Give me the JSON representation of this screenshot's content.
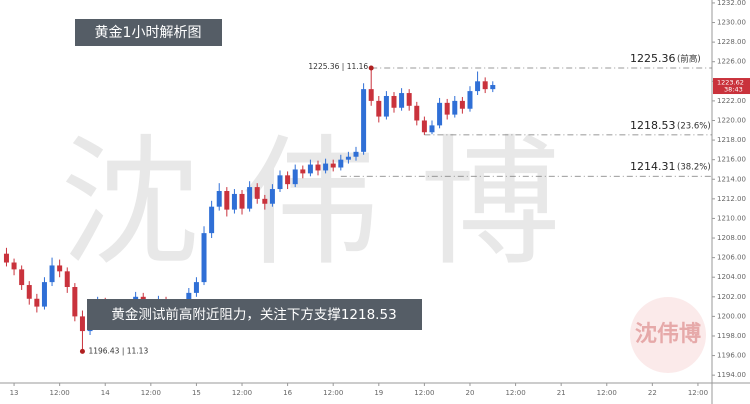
{
  "chart_data": {
    "type": "candlestick",
    "title": "黄金1小时解析图",
    "note": "黄金测试前高附近阻力，关注下方支撑1218.53",
    "watermark": "沈伟博",
    "logo": "沈伟博",
    "up_color": "#2f6fd6",
    "down_color": "#c9323c",
    "x": [
      -2,
      0,
      2,
      4,
      6,
      8,
      10,
      12,
      14,
      16,
      18,
      20,
      22,
      24,
      26,
      28,
      30,
      32,
      34,
      36,
      38,
      40,
      42,
      44,
      46,
      48,
      50,
      52,
      54,
      56,
      58,
      60,
      62,
      64,
      66,
      68,
      70,
      72,
      74,
      76,
      78,
      80,
      82,
      84,
      86,
      88,
      90,
      92,
      94,
      96,
      98,
      100,
      102,
      104,
      106,
      108,
      110,
      112,
      114,
      116,
      118,
      120,
      122,
      124,
      126
    ],
    "candles": [
      [
        1206.4,
        1207.0,
        1205.1,
        1205.5
      ],
      [
        1205.5,
        1205.9,
        1204.2,
        1204.8
      ],
      [
        1204.8,
        1205.2,
        1202.7,
        1203.2
      ],
      [
        1203.2,
        1203.6,
        1201.2,
        1201.8
      ],
      [
        1201.8,
        1202.3,
        1200.4,
        1201.0
      ],
      [
        1201.0,
        1204.0,
        1200.7,
        1203.5
      ],
      [
        1203.5,
        1206.0,
        1203.1,
        1205.2
      ],
      [
        1205.2,
        1205.8,
        1204.0,
        1204.6
      ],
      [
        1204.6,
        1205.0,
        1202.4,
        1203.0
      ],
      [
        1203.0,
        1203.4,
        1199.5,
        1200.0
      ],
      [
        1200.0,
        1200.6,
        1196.43,
        1198.5
      ],
      [
        1198.5,
        1200.8,
        1198.1,
        1200.2
      ],
      [
        1200.2,
        1202.0,
        1199.8,
        1201.5
      ],
      [
        1201.5,
        1201.9,
        1200.2,
        1200.8
      ],
      [
        1200.8,
        1201.2,
        1199.0,
        1199.6
      ],
      [
        1199.6,
        1201.7,
        1199.3,
        1201.2
      ],
      [
        1201.2,
        1201.6,
        1200.0,
        1200.5
      ],
      [
        1200.5,
        1202.5,
        1200.2,
        1202.0
      ],
      [
        1202.0,
        1202.4,
        1200.8,
        1201.3
      ],
      [
        1201.3,
        1201.7,
        1199.5,
        1200.0
      ],
      [
        1200.0,
        1202.1,
        1199.7,
        1201.6
      ],
      [
        1201.6,
        1202.0,
        1200.4,
        1200.9
      ],
      [
        1200.9,
        1201.3,
        1199.2,
        1199.8
      ],
      [
        1199.8,
        1201.5,
        1199.4,
        1201.0
      ],
      [
        1201.0,
        1202.9,
        1200.6,
        1202.4
      ],
      [
        1202.4,
        1204.0,
        1202.0,
        1203.5
      ],
      [
        1203.5,
        1209.2,
        1203.2,
        1208.5
      ],
      [
        1208.5,
        1211.8,
        1208.0,
        1211.2
      ],
      [
        1211.2,
        1213.6,
        1210.8,
        1212.8
      ],
      [
        1212.8,
        1213.2,
        1210.2,
        1210.9
      ],
      [
        1210.9,
        1213.0,
        1210.5,
        1212.5
      ],
      [
        1212.5,
        1212.9,
        1210.4,
        1211.0
      ],
      [
        1211.0,
        1213.8,
        1210.7,
        1213.2
      ],
      [
        1213.2,
        1213.6,
        1211.5,
        1212.0
      ],
      [
        1212.0,
        1212.4,
        1210.9,
        1211.5
      ],
      [
        1211.5,
        1213.5,
        1211.2,
        1213.0
      ],
      [
        1213.0,
        1214.9,
        1212.7,
        1214.4
      ],
      [
        1214.4,
        1214.8,
        1213.0,
        1213.5
      ],
      [
        1213.5,
        1215.5,
        1213.2,
        1215.0
      ],
      [
        1215.0,
        1215.4,
        1214.1,
        1214.6
      ],
      [
        1214.6,
        1216.0,
        1214.3,
        1215.5
      ],
      [
        1215.5,
        1215.9,
        1214.4,
        1214.9
      ],
      [
        1214.9,
        1216.1,
        1214.6,
        1215.6
      ],
      [
        1215.6,
        1216.0,
        1214.8,
        1215.2
      ],
      [
        1215.2,
        1216.5,
        1214.9,
        1216.0
      ],
      [
        1216.0,
        1216.8,
        1215.6,
        1216.3
      ],
      [
        1216.3,
        1217.3,
        1215.9,
        1216.8
      ],
      [
        1216.8,
        1223.8,
        1216.5,
        1223.2
      ],
      [
        1223.2,
        1225.36,
        1221.5,
        1222.0
      ],
      [
        1222.0,
        1222.5,
        1219.8,
        1220.4
      ],
      [
        1220.4,
        1223.0,
        1220.1,
        1222.5
      ],
      [
        1222.5,
        1222.9,
        1220.8,
        1221.3
      ],
      [
        1221.3,
        1223.3,
        1221.0,
        1222.8
      ],
      [
        1222.8,
        1223.2,
        1221.0,
        1221.5
      ],
      [
        1221.5,
        1221.9,
        1219.5,
        1220.0
      ],
      [
        1220.0,
        1220.4,
        1218.53,
        1218.8
      ],
      [
        1218.8,
        1220.0,
        1218.6,
        1219.5
      ],
      [
        1219.5,
        1222.3,
        1219.2,
        1221.8
      ],
      [
        1221.8,
        1222.2,
        1220.1,
        1220.6
      ],
      [
        1220.6,
        1222.5,
        1220.3,
        1222.0
      ],
      [
        1222.0,
        1222.4,
        1220.7,
        1221.2
      ],
      [
        1221.2,
        1223.5,
        1220.9,
        1223.0
      ],
      [
        1223.0,
        1225.0,
        1222.6,
        1224.0
      ],
      [
        1224.0,
        1224.4,
        1222.8,
        1223.2
      ],
      [
        1223.2,
        1224.0,
        1222.9,
        1223.62
      ]
    ],
    "xlim": [
      -3.7,
      183.7
    ],
    "ylim": [
      1193.2,
      1232.3
    ],
    "xticks": [
      {
        "value": 0,
        "label": "13"
      },
      {
        "value": 12,
        "label": "12:00"
      },
      {
        "value": 24,
        "label": "14"
      },
      {
        "value": 36,
        "label": "12:00"
      },
      {
        "value": 48,
        "label": "15"
      },
      {
        "value": 60,
        "label": "12:00"
      },
      {
        "value": 72,
        "label": "16"
      },
      {
        "value": 84,
        "label": "12:00"
      },
      {
        "value": 96,
        "label": "19"
      },
      {
        "value": 108,
        "label": "12:00"
      },
      {
        "value": 120,
        "label": "20"
      },
      {
        "value": 132,
        "label": "12:00"
      },
      {
        "value": 144,
        "label": "21"
      },
      {
        "value": 156,
        "label": "12:00"
      },
      {
        "value": 168,
        "label": "22"
      },
      {
        "value": 180,
        "label": "12:00"
      }
    ],
    "yticks": [
      {
        "value": 1194,
        "label": "1194.00"
      },
      {
        "value": 1196,
        "label": "1196.00"
      },
      {
        "value": 1198,
        "label": "1198.00"
      },
      {
        "value": 1200,
        "label": "1200.00"
      },
      {
        "value": 1202,
        "label": "1202.00"
      },
      {
        "value": 1204,
        "label": "1204.00"
      },
      {
        "value": 1206,
        "label": "1206.00"
      },
      {
        "value": 1208,
        "label": "1208.00"
      },
      {
        "value": 1210,
        "label": "1210.00"
      },
      {
        "value": 1212,
        "label": "1212.00"
      },
      {
        "value": 1214,
        "label": "1214.00"
      },
      {
        "value": 1216,
        "label": "1216.00"
      },
      {
        "value": 1218,
        "label": "1218.00"
      },
      {
        "value": 1220,
        "label": "1220.00"
      },
      {
        "value": 1222,
        "label": "1222.00"
      },
      {
        "value": 1224,
        "label": "1224.00"
      },
      {
        "value": 1226,
        "label": "1226.00"
      },
      {
        "value": 1228,
        "label": "1228.00"
      },
      {
        "value": 1230,
        "label": "1230.00"
      },
      {
        "value": 1232,
        "label": "1232.00"
      }
    ],
    "levels": [
      {
        "value": 1225.36,
        "tag": "(前高)",
        "from": 94
      },
      {
        "value": 1218.53,
        "tag": "(23.6%)",
        "from": 108
      },
      {
        "value": 1214.31,
        "tag": "(38.2%)",
        "from": 86
      }
    ],
    "annotations": [
      {
        "text": "1225.36 | 11.16",
        "x": 94,
        "y": 1225.36
      },
      {
        "text": "1196.43 | 11.13",
        "x": 18,
        "y": 1196.43
      }
    ],
    "last_price": 1223.62,
    "countdown": "38:43"
  }
}
